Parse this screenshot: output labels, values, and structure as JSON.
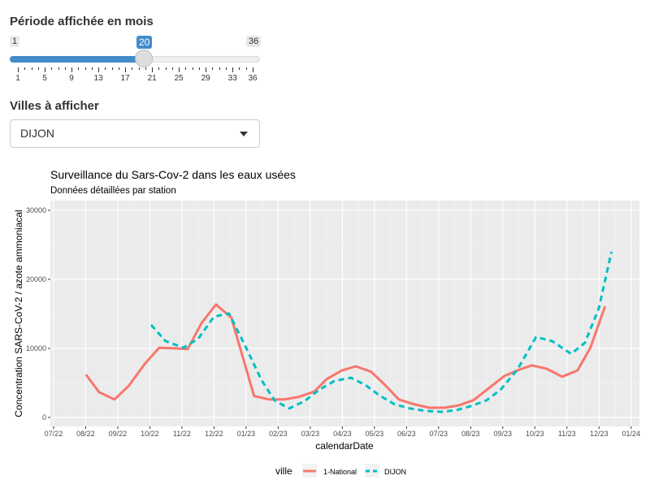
{
  "slider": {
    "label": "Période affichée en mois",
    "min": "1",
    "max": "36",
    "value": "20",
    "value_num": 20,
    "ticks": [
      "1",
      "5",
      "9",
      "13",
      "17",
      "21",
      "25",
      "29",
      "33",
      "36"
    ]
  },
  "cities": {
    "label": "Villes à afficher",
    "selected": "DIJON"
  },
  "chart_data": {
    "type": "line",
    "title": "Surveillance du Sars-Cov-2 dans les eaux usées",
    "subtitle": "Données détaillées par station",
    "xlabel": "calendarDate",
    "ylabel": "Concentration SARS-CoV-2 / azote ammoniacal",
    "x_unit": "months since 07/22",
    "xlim": [
      -0.1,
      18.26
    ],
    "ylim": [
      -1300,
      31400
    ],
    "x_ticks": [
      "07/22",
      "08/22",
      "09/22",
      "10/22",
      "11/22",
      "12/22",
      "01/23",
      "02/23",
      "03/23",
      "04/23",
      "05/23",
      "06/23",
      "07/23",
      "08/23",
      "09/23",
      "10/23",
      "11/23",
      "12/23",
      "01/24"
    ],
    "y_ticks": [
      0,
      10000,
      20000,
      30000
    ],
    "y_tick_labels": [
      "0",
      "10000",
      "20000",
      "30000"
    ],
    "legend": {
      "title": "ville",
      "position": "bottom"
    },
    "series": [
      {
        "name": "1-National",
        "color": "#F8766D",
        "dash": "solid",
        "x": [
          1.01,
          1.42,
          1.9,
          2.35,
          2.84,
          3.29,
          3.77,
          4.18,
          4.61,
          5.06,
          5.54,
          6.25,
          6.71,
          7.19,
          7.62,
          8.13,
          8.51,
          8.99,
          9.42,
          9.9,
          10.33,
          10.76,
          11.24,
          11.72,
          12.18,
          12.63,
          13.09,
          13.57,
          14.05,
          14.53,
          14.91,
          15.37,
          15.85,
          16.33,
          16.73,
          17.19
        ],
        "y": [
          6200,
          3650,
          2600,
          4600,
          7750,
          10100,
          10000,
          9900,
          13650,
          16350,
          14450,
          3100,
          2600,
          2600,
          2950,
          3750,
          5550,
          6800,
          7400,
          6600,
          4700,
          2600,
          1900,
          1400,
          1400,
          1750,
          2500,
          4250,
          6000,
          6950,
          7550,
          7050,
          5900,
          6800,
          10100,
          16100
        ]
      },
      {
        "name": "DIJON",
        "color": "#00BFC4",
        "dash": "dashed",
        "x": [
          3.04,
          3.49,
          4.05,
          4.51,
          5.0,
          5.47,
          6.0,
          6.48,
          6.89,
          7.34,
          7.82,
          8.28,
          8.76,
          9.27,
          9.72,
          10.15,
          10.63,
          11.11,
          11.59,
          12.08,
          12.56,
          13.01,
          13.49,
          13.95,
          14.46,
          15.04,
          15.54,
          16.13,
          16.56,
          16.99,
          17.39
        ],
        "y": [
          13400,
          11050,
          10100,
          11400,
          14600,
          15050,
          10100,
          5400,
          2450,
          1300,
          2350,
          4000,
          5300,
          5750,
          4700,
          3200,
          1900,
          1300,
          950,
          800,
          1050,
          1650,
          2450,
          4100,
          6950,
          11650,
          11050,
          9200,
          10800,
          15750,
          24000
        ]
      }
    ]
  }
}
